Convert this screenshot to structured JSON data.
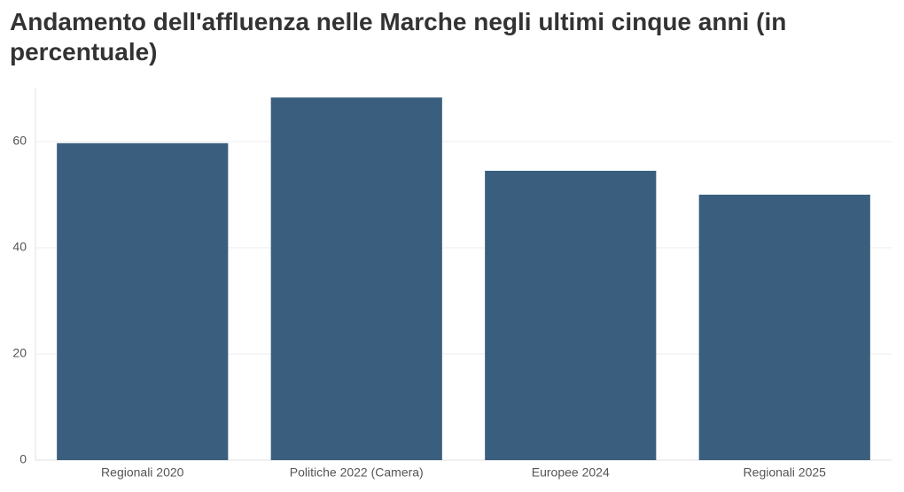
{
  "chart_data": {
    "type": "bar",
    "title": "Andamento dell'affluenza nelle Marche negli ultimi cinque anni (in percentuale)",
    "categories": [
      "Regionali 2020",
      "Politiche 2022 (Camera)",
      "Europee 2024",
      "Regionali 2025"
    ],
    "values": [
      59.7,
      68.3,
      54.5,
      50.0
    ],
    "color": "#3a5f7e",
    "ylim": [
      0,
      70
    ],
    "yticks": [
      0,
      20,
      40,
      60
    ],
    "grid": true
  }
}
